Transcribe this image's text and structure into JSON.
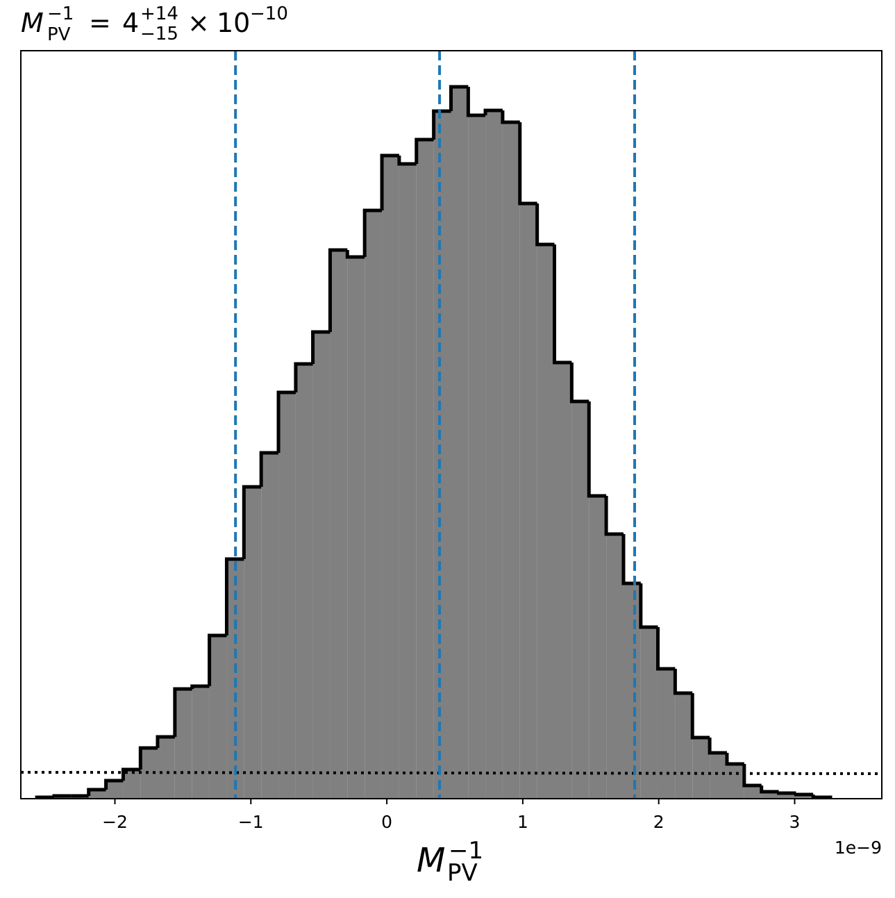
{
  "chart_data": {
    "type": "histogram",
    "title": {
      "symbol": "M",
      "sup": "−1",
      "sub": "PV",
      "eq": "=",
      "value": "4",
      "plus": "+14",
      "minus": "−15",
      "times": "×",
      "base": "10",
      "exp": "−10"
    },
    "x_label": {
      "symbol": "M",
      "sup": "−1",
      "sub": "PV"
    },
    "x_offset_label": "1e−9",
    "bins": [
      -2.574,
      -2.447,
      -2.32,
      -2.193,
      -2.066,
      -1.939,
      -1.812,
      -1.686,
      -1.559,
      -1.432,
      -1.305,
      -1.178,
      -1.051,
      -0.924,
      -0.797,
      -0.67,
      -0.544,
      -0.417,
      -0.29,
      -0.163,
      -0.036,
      0.091,
      0.218,
      0.345,
      0.472,
      0.599,
      0.725,
      0.852,
      0.979,
      1.106,
      1.233,
      1.36,
      1.487,
      1.614,
      1.741,
      1.868,
      1.994,
      2.121,
      2.248,
      2.375,
      2.502,
      2.629,
      2.756,
      2.883,
      3.01,
      3.136,
      3.263
    ],
    "values": [
      2,
      4,
      4,
      13,
      26,
      42,
      73,
      89,
      158,
      162,
      235,
      345,
      449,
      498,
      585,
      626,
      672,
      790,
      780,
      847,
      926,
      914,
      949,
      990,
      1025,
      984,
      991,
      974,
      857,
      798,
      628,
      572,
      436,
      381,
      310,
      247,
      187,
      152,
      88,
      66,
      50,
      19,
      10,
      8,
      6,
      2
    ],
    "color": "#808080",
    "edge_color": "#000000",
    "vlines": {
      "values": [
        -1.113,
        0.388,
        1.823
      ],
      "color": "#1f77b4"
    },
    "reference": {
      "x": [
        -2.692,
        3.641
      ],
      "values": [
        38,
        36
      ],
      "color": "#000000"
    },
    "xlim": [
      -2.692,
      3.641
    ],
    "ylim": [
      0,
      1077
    ],
    "xticks": [
      {
        "value": -2,
        "label": "−2"
      },
      {
        "value": -1,
        "label": "−1"
      },
      0,
      1,
      2,
      3
    ]
  }
}
